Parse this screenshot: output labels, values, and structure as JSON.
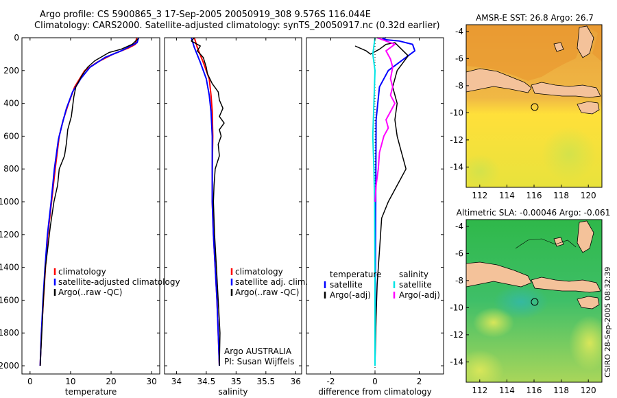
{
  "titles": {
    "line1": "Argo profile: CS 5900865_3 17-Sep-2005 20050919_308 9.576S 116.044E",
    "line2": "Climatology: CARS2000. Satellite-adjusted climatology: synTS_20050917.nc (0.32d earlier)"
  },
  "credit": "CSIRO 28-Sep-2005 08:32:39",
  "colors": {
    "climatology": "#ff0000",
    "satellite": "#0000ff",
    "argo": "#000000",
    "sat_diff": "#00e5e5",
    "argo_diff": "#ff00ff",
    "land": "#f4c29a"
  },
  "chart_data": [
    {
      "type": "line",
      "id": "temperature",
      "xlabel": "temperature",
      "xlim": [
        -2,
        32
      ],
      "ylim": [
        0,
        2050
      ],
      "xticks": [
        0,
        10,
        20,
        30
      ],
      "yticks": [
        0,
        200,
        400,
        600,
        800,
        1000,
        1200,
        1400,
        1600,
        1800,
        2000
      ],
      "legend": [
        "climatology",
        "satellite-adjusted climatology",
        "Argo(..raw -QC)"
      ],
      "series": [
        {
          "name": "climatology",
          "color": "#ff0000",
          "width": 2,
          "points": [
            [
              26.3,
              0
            ],
            [
              26.0,
              40
            ],
            [
              24.5,
              60
            ],
            [
              20.5,
              100
            ],
            [
              16.5,
              150
            ],
            [
              13.5,
              200
            ],
            [
              11.0,
              300
            ],
            [
              9.5,
              400
            ],
            [
              8.2,
              500
            ],
            [
              7.2,
              600
            ],
            [
              6.2,
              800
            ],
            [
              5.3,
              1000
            ],
            [
              4.4,
              1200
            ],
            [
              3.8,
              1400
            ],
            [
              3.3,
              1600
            ],
            [
              2.8,
              1800
            ],
            [
              2.5,
              2000
            ]
          ]
        },
        {
          "name": "satellite",
          "color": "#0000ff",
          "width": 2,
          "points": [
            [
              26.8,
              0
            ],
            [
              26.4,
              30
            ],
            [
              22.5,
              80
            ],
            [
              18.5,
              120
            ],
            [
              14.8,
              180
            ],
            [
              12.5,
              250
            ],
            [
              10.5,
              330
            ],
            [
              9.0,
              430
            ],
            [
              8.0,
              520
            ],
            [
              7.0,
              620
            ],
            [
              6.0,
              800
            ],
            [
              5.2,
              1000
            ],
            [
              4.3,
              1200
            ],
            [
              3.7,
              1400
            ],
            [
              3.2,
              1600
            ],
            [
              2.8,
              1800
            ],
            [
              2.5,
              2000
            ]
          ]
        },
        {
          "name": "Argo(..raw -QC)",
          "color": "#000000",
          "width": 1.5,
          "points": [
            [
              26.7,
              5
            ],
            [
              25.2,
              40
            ],
            [
              22.5,
              70
            ],
            [
              19.5,
              90
            ],
            [
              16.0,
              140
            ],
            [
              14.2,
              180
            ],
            [
              12.8,
              230
            ],
            [
              11.3,
              300
            ],
            [
              10.8,
              360
            ],
            [
              10.5,
              420
            ],
            [
              10.2,
              480
            ],
            [
              9.3,
              560
            ],
            [
              9.0,
              640
            ],
            [
              8.5,
              720
            ],
            [
              7.2,
              800
            ],
            [
              6.8,
              900
            ],
            [
              5.9,
              1000
            ],
            [
              5.0,
              1150
            ],
            [
              4.3,
              1300
            ],
            [
              3.8,
              1400
            ],
            [
              3.3,
              1600
            ],
            [
              2.9,
              1800
            ],
            [
              2.5,
              2000
            ]
          ]
        }
      ]
    },
    {
      "type": "line",
      "id": "salinity",
      "xlabel": "salinity",
      "xlim": [
        33.8,
        36.1
      ],
      "ylim": [
        0,
        2050
      ],
      "xticks": [
        34,
        34.5,
        35,
        35.5,
        36
      ],
      "legend": [
        "climatology",
        "satellite adj. clim.",
        "Argo(..raw -QC)"
      ],
      "annotation": [
        "Argo AUSTRALIA",
        "PI: Susan Wijffels"
      ],
      "series": [
        {
          "name": "climatology",
          "color": "#ff0000",
          "width": 2,
          "points": [
            [
              34.3,
              0
            ],
            [
              34.35,
              60
            ],
            [
              34.45,
              150
            ],
            [
              34.55,
              250
            ],
            [
              34.58,
              350
            ],
            [
              34.6,
              450
            ],
            [
              34.61,
              600
            ],
            [
              34.6,
              800
            ],
            [
              34.6,
              1000
            ],
            [
              34.62,
              1200
            ],
            [
              34.65,
              1400
            ],
            [
              34.68,
              1600
            ],
            [
              34.7,
              1800
            ],
            [
              34.72,
              2000
            ]
          ]
        },
        {
          "name": "satellite adj. clim.",
          "color": "#0000ff",
          "width": 2,
          "points": [
            [
              34.25,
              0
            ],
            [
              34.3,
              60
            ],
            [
              34.4,
              150
            ],
            [
              34.5,
              250
            ],
            [
              34.55,
              350
            ],
            [
              34.58,
              450
            ],
            [
              34.6,
              600
            ],
            [
              34.6,
              800
            ],
            [
              34.6,
              1000
            ],
            [
              34.62,
              1200
            ],
            [
              34.65,
              1400
            ],
            [
              34.68,
              1600
            ],
            [
              34.7,
              1800
            ],
            [
              34.72,
              2000
            ]
          ]
        },
        {
          "name": "Argo(..raw -QC)",
          "color": "#000000",
          "width": 1.5,
          "points": [
            [
              34.3,
              0
            ],
            [
              34.25,
              20
            ],
            [
              34.4,
              50
            ],
            [
              34.35,
              80
            ],
            [
              34.45,
              120
            ],
            [
              34.5,
              180
            ],
            [
              34.52,
              220
            ],
            [
              34.6,
              280
            ],
            [
              34.7,
              330
            ],
            [
              34.72,
              380
            ],
            [
              34.78,
              430
            ],
            [
              34.72,
              480
            ],
            [
              34.8,
              520
            ],
            [
              34.72,
              560
            ],
            [
              34.75,
              600
            ],
            [
              34.7,
              650
            ],
            [
              34.72,
              720
            ],
            [
              34.65,
              800
            ],
            [
              34.63,
              900
            ],
            [
              34.62,
              1000
            ],
            [
              34.64,
              1200
            ],
            [
              34.67,
              1400
            ],
            [
              34.7,
              1600
            ],
            [
              34.73,
              1800
            ],
            [
              34.72,
              2000
            ]
          ]
        }
      ]
    },
    {
      "type": "line",
      "id": "difference",
      "xlabel": "difference from climatology",
      "xlim": [
        -3.1,
        3.1
      ],
      "ylim": [
        0,
        2050
      ],
      "xticks": [
        -2,
        0,
        2
      ],
      "legend_temperature": [
        "temperature",
        "satellite",
        "Argo(-adj)"
      ],
      "legend_salinity": [
        "salinity",
        "satellite",
        "Argo(-adj)"
      ],
      "series": [
        {
          "name": "temperature satellite",
          "color": "#0000ff",
          "width": 2,
          "points": [
            [
              0.5,
              0
            ],
            [
              0.3,
              10
            ],
            [
              1.1,
              20
            ],
            [
              1.7,
              40
            ],
            [
              1.8,
              80
            ],
            [
              1.3,
              130
            ],
            [
              0.6,
              200
            ],
            [
              0.2,
              300
            ],
            [
              0.05,
              500
            ],
            [
              0,
              2000
            ]
          ]
        },
        {
          "name": "temperature Argo(-adj)",
          "color": "#000000",
          "width": 1.5,
          "points": [
            [
              -0.9,
              50
            ],
            [
              -0.4,
              80
            ],
            [
              -0.2,
              100
            ],
            [
              0.2,
              70
            ],
            [
              0.5,
              40
            ],
            [
              0.9,
              30
            ],
            [
              1.5,
              110
            ],
            [
              1.0,
              200
            ],
            [
              0.8,
              300
            ],
            [
              1.0,
              400
            ],
            [
              0.9,
              500
            ],
            [
              1.0,
              600
            ],
            [
              1.2,
              700
            ],
            [
              1.4,
              800
            ],
            [
              1.0,
              900
            ],
            [
              0.6,
              1000
            ],
            [
              0.3,
              1100
            ],
            [
              0.2,
              1300
            ],
            [
              0.1,
              1500
            ],
            [
              0.05,
              1700
            ],
            [
              0,
              2000
            ]
          ]
        },
        {
          "name": "salinity satellite",
          "color": "#00e5e5",
          "width": 2,
          "points": [
            [
              0,
              0
            ],
            [
              -0.05,
              50
            ],
            [
              -0.1,
              100
            ],
            [
              0,
              200
            ],
            [
              -0.05,
              400
            ],
            [
              -0.1,
              600
            ],
            [
              -0.05,
              800
            ],
            [
              -0.02,
              1000
            ],
            [
              0,
              1500
            ],
            [
              0,
              2000
            ]
          ]
        },
        {
          "name": "salinity Argo(-adj)",
          "color": "#ff00ff",
          "width": 2,
          "points": [
            [
              0.1,
              0
            ],
            [
              0.5,
              20
            ],
            [
              0.9,
              40
            ],
            [
              0.5,
              80
            ],
            [
              0.7,
              130
            ],
            [
              0.8,
              180
            ],
            [
              0.7,
              250
            ],
            [
              0.8,
              300
            ],
            [
              0.7,
              350
            ],
            [
              0.9,
              400
            ],
            [
              0.7,
              450
            ],
            [
              0.5,
              500
            ],
            [
              0.6,
              550
            ],
            [
              0.4,
              600
            ],
            [
              0.3,
              650
            ],
            [
              0.2,
              700
            ],
            [
              0.15,
              800
            ],
            [
              0.05,
              900
            ],
            [
              0,
              1000
            ]
          ]
        }
      ]
    },
    {
      "type": "heatmap",
      "id": "sst-map",
      "title": "AMSR-E SST: 26.8 Argo: 26.7",
      "xlim": [
        111,
        121
      ],
      "ylim": [
        -15.5,
        -3.5
      ],
      "xticks": [
        112,
        114,
        116,
        118,
        120
      ],
      "yticks": [
        -4,
        -6,
        -8,
        -10,
        -12,
        -14
      ],
      "profile_location": [
        116.044,
        -9.576
      ]
    },
    {
      "type": "heatmap",
      "id": "sla-map",
      "title": "Altimetric SLA: -0.00046 Argo: -0.061",
      "xlim": [
        111,
        121
      ],
      "ylim": [
        -15.5,
        -3.5
      ],
      "xticks": [
        112,
        114,
        116,
        118,
        120
      ],
      "yticks": [
        -4,
        -6,
        -8,
        -10,
        -12,
        -14
      ],
      "profile_location": [
        116.044,
        -9.576
      ]
    }
  ]
}
